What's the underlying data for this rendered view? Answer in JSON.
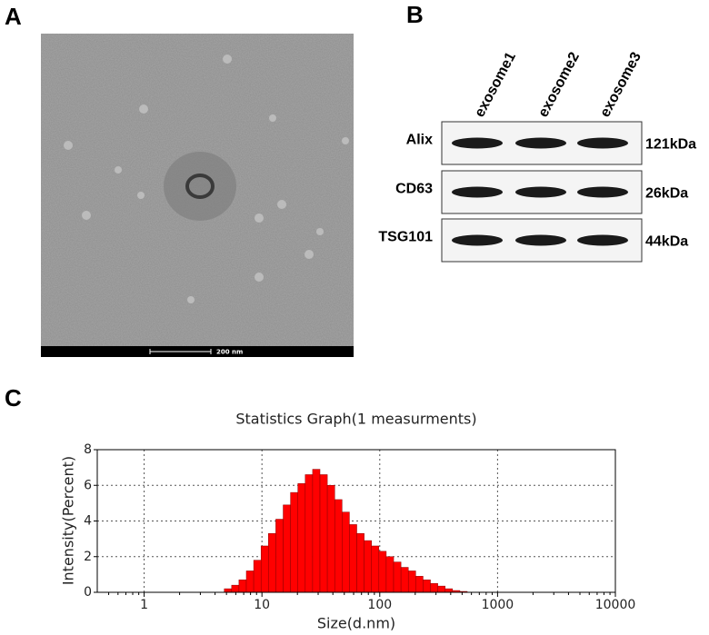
{
  "panel_a": {
    "label": "A",
    "scale_bar": "200 nm"
  },
  "panel_b": {
    "label": "B",
    "lanes": [
      "exosome1",
      "exosome2",
      "exosome3"
    ],
    "rows": [
      {
        "protein": "Alix",
        "size": "121kDa"
      },
      {
        "protein": "CD63",
        "size": "26kDa"
      },
      {
        "protein": "TSG101",
        "size": "44kDa"
      }
    ]
  },
  "panel_c": {
    "label": "C"
  },
  "chart_data": {
    "type": "histogram",
    "title": "Statistics Graph(1 measurments)",
    "x_label": "Size(d.nm)",
    "y_label": "Intensity(Percent)",
    "bins": [
      4.79,
      5.53,
      6.38,
      7.37,
      8.51,
      9.83,
      11.35,
      13.11,
      15.14,
      17.48,
      20.18,
      23.31,
      26.92,
      31.08,
      35.89,
      41.45,
      47.86,
      55.27,
      63.83,
      73.7,
      85.11,
      98.28,
      113.5,
      131.1,
      151.4,
      174.8,
      201.8,
      233.1,
      269.2,
      310.8,
      358.9,
      414.5,
      478.6,
      552.7
    ],
    "values": [
      0.2,
      0.4,
      0.7,
      1.2,
      1.8,
      2.6,
      3.3,
      4.1,
      4.9,
      5.6,
      6.1,
      6.6,
      6.9,
      6.6,
      6.0,
      5.2,
      4.5,
      3.8,
      3.3,
      2.9,
      2.6,
      2.3,
      2.0,
      1.7,
      1.4,
      1.2,
      0.9,
      0.7,
      0.5,
      0.35,
      0.2,
      0.1,
      0.05
    ],
    "color": "#ff0000",
    "x_log": true,
    "xlim": [
      0.4,
      10000
    ],
    "xticks": [
      1,
      10,
      100,
      1000,
      10000
    ],
    "ylim": [
      0,
      8
    ],
    "yticks": [
      0,
      2,
      4,
      6,
      8
    ],
    "grid": true
  }
}
